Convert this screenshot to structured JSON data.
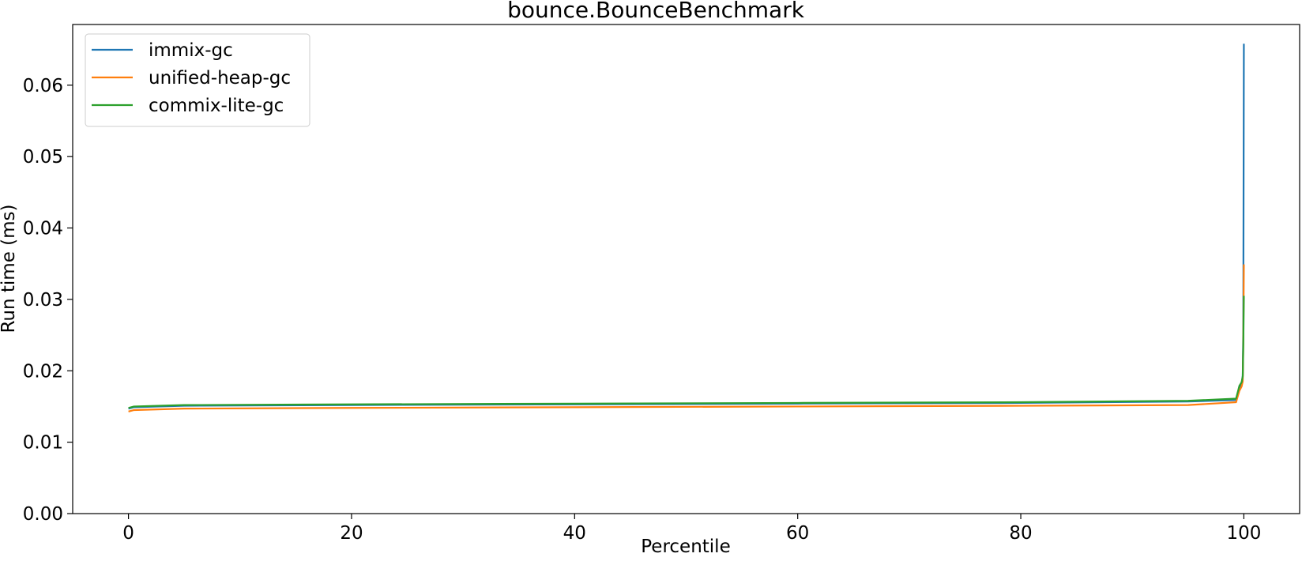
{
  "chart_data": {
    "type": "line",
    "title": "bounce.BounceBenchmark",
    "xlabel": "Percentile",
    "ylabel": "Run time (ms)",
    "xlim": [
      -5,
      105
    ],
    "ylim": [
      0,
      0.0685
    ],
    "xticks": [
      0,
      20,
      40,
      60,
      80,
      100
    ],
    "yticks": [
      0.0,
      0.01,
      0.02,
      0.03,
      0.04,
      0.05,
      0.06
    ],
    "xtick_labels": [
      "0",
      "20",
      "40",
      "60",
      "80",
      "100"
    ],
    "ytick_labels": [
      "0.00",
      "0.01",
      "0.02",
      "0.03",
      "0.04",
      "0.05",
      "0.06"
    ],
    "grid": false,
    "legend_position": "upper-left",
    "series": [
      {
        "name": "immix-gc",
        "color": "#1f77b4",
        "points": [
          [
            0,
            0.0147
          ],
          [
            0.5,
            0.0149
          ],
          [
            5,
            0.0151
          ],
          [
            20,
            0.0152
          ],
          [
            40,
            0.0153
          ],
          [
            60,
            0.0154
          ],
          [
            80,
            0.0155
          ],
          [
            95,
            0.0157
          ],
          [
            99.3,
            0.0159
          ],
          [
            99.6,
            0.0176
          ],
          [
            99.8,
            0.0183
          ],
          [
            99.9,
            0.0193
          ],
          [
            99.95,
            0.026
          ],
          [
            100,
            0.0658
          ]
        ]
      },
      {
        "name": "unified-heap-gc",
        "color": "#ff7f0e",
        "points": [
          [
            0,
            0.0143
          ],
          [
            0.5,
            0.0145
          ],
          [
            5,
            0.0147
          ],
          [
            20,
            0.0148
          ],
          [
            40,
            0.0149
          ],
          [
            60,
            0.015
          ],
          [
            80,
            0.0151
          ],
          [
            95,
            0.0152
          ],
          [
            99.3,
            0.0156
          ],
          [
            99.6,
            0.0172
          ],
          [
            99.8,
            0.0178
          ],
          [
            99.9,
            0.0185
          ],
          [
            99.95,
            0.024
          ],
          [
            100,
            0.0349
          ]
        ]
      },
      {
        "name": "commix-lite-gc",
        "color": "#2ca02c",
        "points": [
          [
            0,
            0.0148
          ],
          [
            0.5,
            0.015
          ],
          [
            5,
            0.0152
          ],
          [
            20,
            0.0153
          ],
          [
            40,
            0.0154
          ],
          [
            60,
            0.0155
          ],
          [
            80,
            0.0156
          ],
          [
            95,
            0.0158
          ],
          [
            99.3,
            0.0161
          ],
          [
            99.6,
            0.0179
          ],
          [
            99.8,
            0.0184
          ],
          [
            99.9,
            0.0192
          ],
          [
            99.95,
            0.0235
          ],
          [
            100,
            0.0305
          ]
        ]
      }
    ]
  }
}
